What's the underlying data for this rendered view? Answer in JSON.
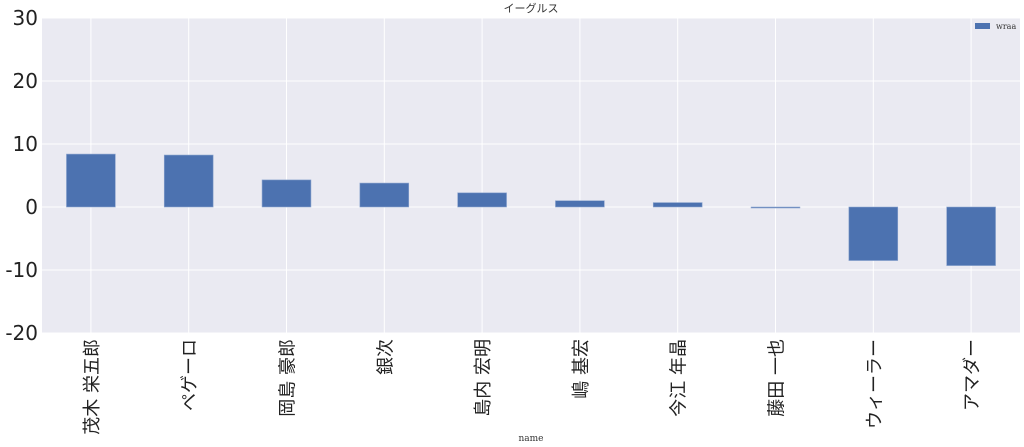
{
  "chart_data": {
    "type": "bar",
    "title": "イーグルス",
    "xlabel": "name",
    "ylabel": "",
    "categories": [
      "茂木 栄五郎",
      "ペゲーロ",
      "岡島 豪郎",
      "銀次",
      "島内 宏明",
      "嶋 基宏",
      "今江 年晶",
      "藤田 一也",
      "ウィーラー",
      "アマダー"
    ],
    "series": [
      {
        "name": "wraa",
        "values": [
          8.4,
          8.25,
          4.3,
          3.8,
          2.25,
          1.0,
          0.7,
          -0.1,
          -8.5,
          -9.3
        ]
      }
    ],
    "ylim": [
      -20,
      30
    ],
    "yticks": [
      -20,
      -10,
      0,
      10,
      20,
      30
    ],
    "grid": true,
    "legend": "top-right",
    "colors": {
      "bar": "#4c72b0",
      "background": "#eaeaf2",
      "grid": "#ffffff"
    }
  }
}
